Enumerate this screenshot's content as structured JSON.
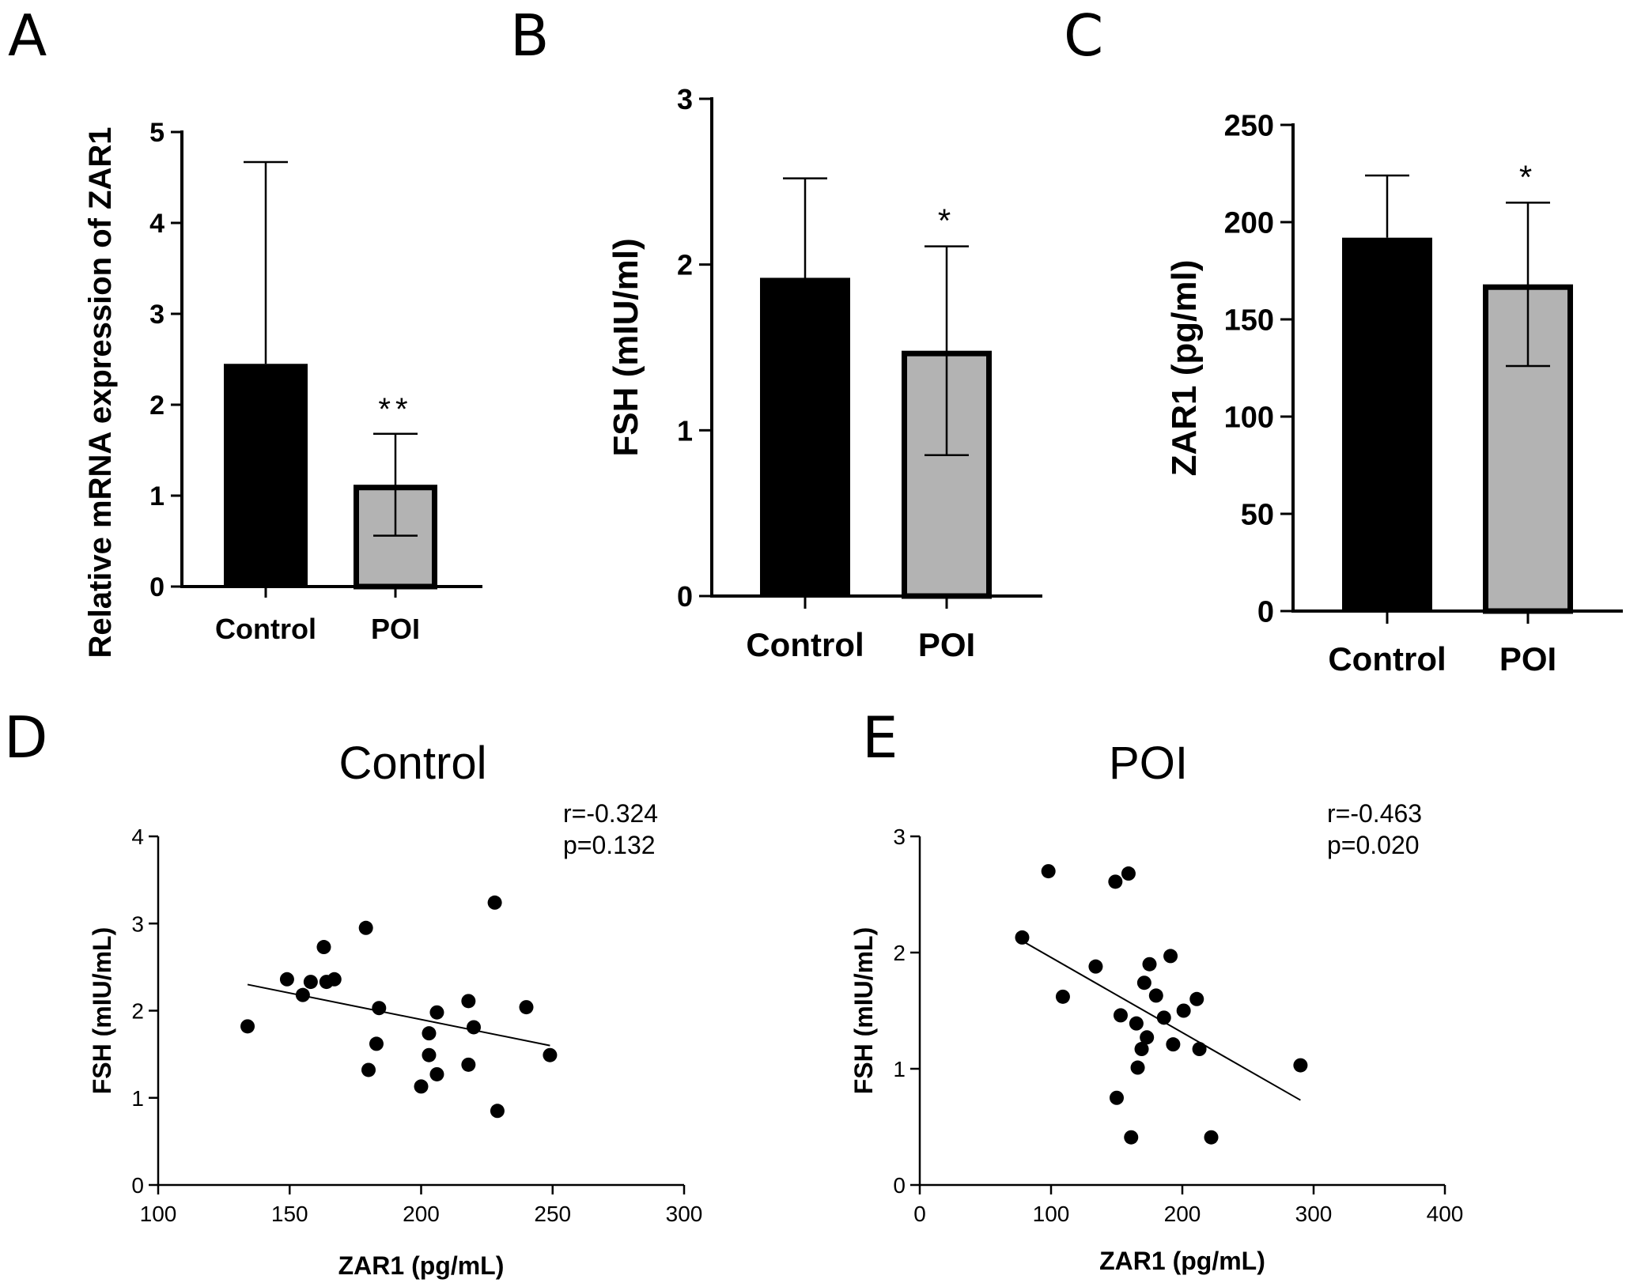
{
  "figure": {
    "panels": [
      "A",
      "B",
      "C",
      "D",
      "E"
    ]
  },
  "chart_data": [
    {
      "panel": "A",
      "type": "bar",
      "categories": [
        "Control",
        "POI"
      ],
      "values": [
        2.45,
        1.12
      ],
      "errors": [
        2.22,
        0.56
      ],
      "significance": [
        "",
        "**"
      ],
      "colors": [
        "#000000",
        "#b3b3b3"
      ],
      "xlabel": "",
      "ylabel": "Relative mRNA expression of ZAR1",
      "ylim": [
        0,
        5
      ],
      "yticks": [
        0,
        1,
        2,
        3,
        4,
        5
      ],
      "yticklabels": [
        "0",
        "1",
        "2",
        "3",
        "4",
        "5"
      ]
    },
    {
      "panel": "B",
      "type": "bar",
      "categories": [
        "Control",
        "POI"
      ],
      "values": [
        1.92,
        1.48
      ],
      "errors": [
        0.6,
        0.63
      ],
      "significance": [
        "",
        "*"
      ],
      "colors": [
        "#000000",
        "#b3b3b3"
      ],
      "xlabel": "",
      "ylabel": "FSH (mIU/ml)",
      "ylim": [
        0,
        3
      ],
      "yticks": [
        0,
        1,
        2,
        3
      ],
      "yticklabels": [
        "0",
        "1",
        "2",
        "3"
      ]
    },
    {
      "panel": "C",
      "type": "bar",
      "categories": [
        "Control",
        "POI"
      ],
      "values": [
        192,
        168
      ],
      "errors": [
        32,
        42
      ],
      "significance": [
        "",
        "*"
      ],
      "colors": [
        "#000000",
        "#b3b3b3"
      ],
      "xlabel": "",
      "ylabel": "ZAR1 (pg/ml)",
      "ylim": [
        0,
        250
      ],
      "yticks": [
        0,
        50,
        100,
        150,
        200,
        250
      ],
      "yticklabels": [
        "0",
        "50",
        "100",
        "150",
        "200",
        "250"
      ]
    },
    {
      "panel": "D",
      "type": "scatter",
      "title": "Control",
      "annotation": [
        "r=-0.324",
        "p=0.132"
      ],
      "xlabel": "ZAR1 (pg/mL)",
      "ylabel": "FSH (mIU/mL)",
      "xlim": [
        100,
        300
      ],
      "ylim": [
        0,
        4
      ],
      "xticks": [
        100,
        150,
        200,
        250,
        300
      ],
      "xticklabels": [
        "100",
        "150",
        "200",
        "250",
        "300"
      ],
      "yticks": [
        0,
        1,
        2,
        3,
        4
      ],
      "yticklabels": [
        "0",
        "1",
        "2",
        "3",
        "4"
      ],
      "x": [
        134,
        149,
        155,
        158,
        163,
        164,
        167,
        179,
        180,
        183,
        184,
        200,
        203,
        203,
        206,
        206,
        218,
        218,
        220,
        228,
        229,
        240,
        249
      ],
      "y": [
        1.82,
        2.36,
        2.18,
        2.33,
        2.73,
        2.33,
        2.36,
        2.95,
        1.32,
        1.62,
        2.03,
        1.13,
        1.74,
        1.49,
        1.98,
        1.27,
        1.38,
        2.11,
        1.81,
        3.24,
        0.85,
        2.04,
        1.49
      ],
      "fit": {
        "x": [
          134,
          249
        ],
        "y": [
          2.3,
          1.6
        ]
      }
    },
    {
      "panel": "E",
      "type": "scatter",
      "title": "POI",
      "annotation": [
        "r=-0.463",
        "p=0.020"
      ],
      "xlabel": "ZAR1 (pg/mL)",
      "ylabel": "FSH (mIU/mL)",
      "xlim": [
        0,
        400
      ],
      "ylim": [
        0,
        3
      ],
      "xticks": [
        0,
        100,
        200,
        300,
        400
      ],
      "xticklabels": [
        "0",
        "100",
        "200",
        "300",
        "400"
      ],
      "yticks": [
        0,
        1,
        2,
        3
      ],
      "yticklabels": [
        "0",
        "1",
        "2",
        "3"
      ],
      "x": [
        78,
        98,
        109,
        134,
        149,
        150,
        153,
        159,
        161,
        165,
        166,
        169,
        171,
        173,
        175,
        180,
        186,
        191,
        193,
        201,
        211,
        213,
        222,
        290
      ],
      "y": [
        2.13,
        2.7,
        1.62,
        1.88,
        2.61,
        0.75,
        1.46,
        2.68,
        0.41,
        1.39,
        1.01,
        1.17,
        1.74,
        1.27,
        1.9,
        1.63,
        1.44,
        1.97,
        1.21,
        1.5,
        1.6,
        1.17,
        0.41,
        1.03
      ],
      "fit": {
        "x": [
          78,
          290
        ],
        "y": [
          2.1,
          0.73
        ]
      }
    }
  ]
}
